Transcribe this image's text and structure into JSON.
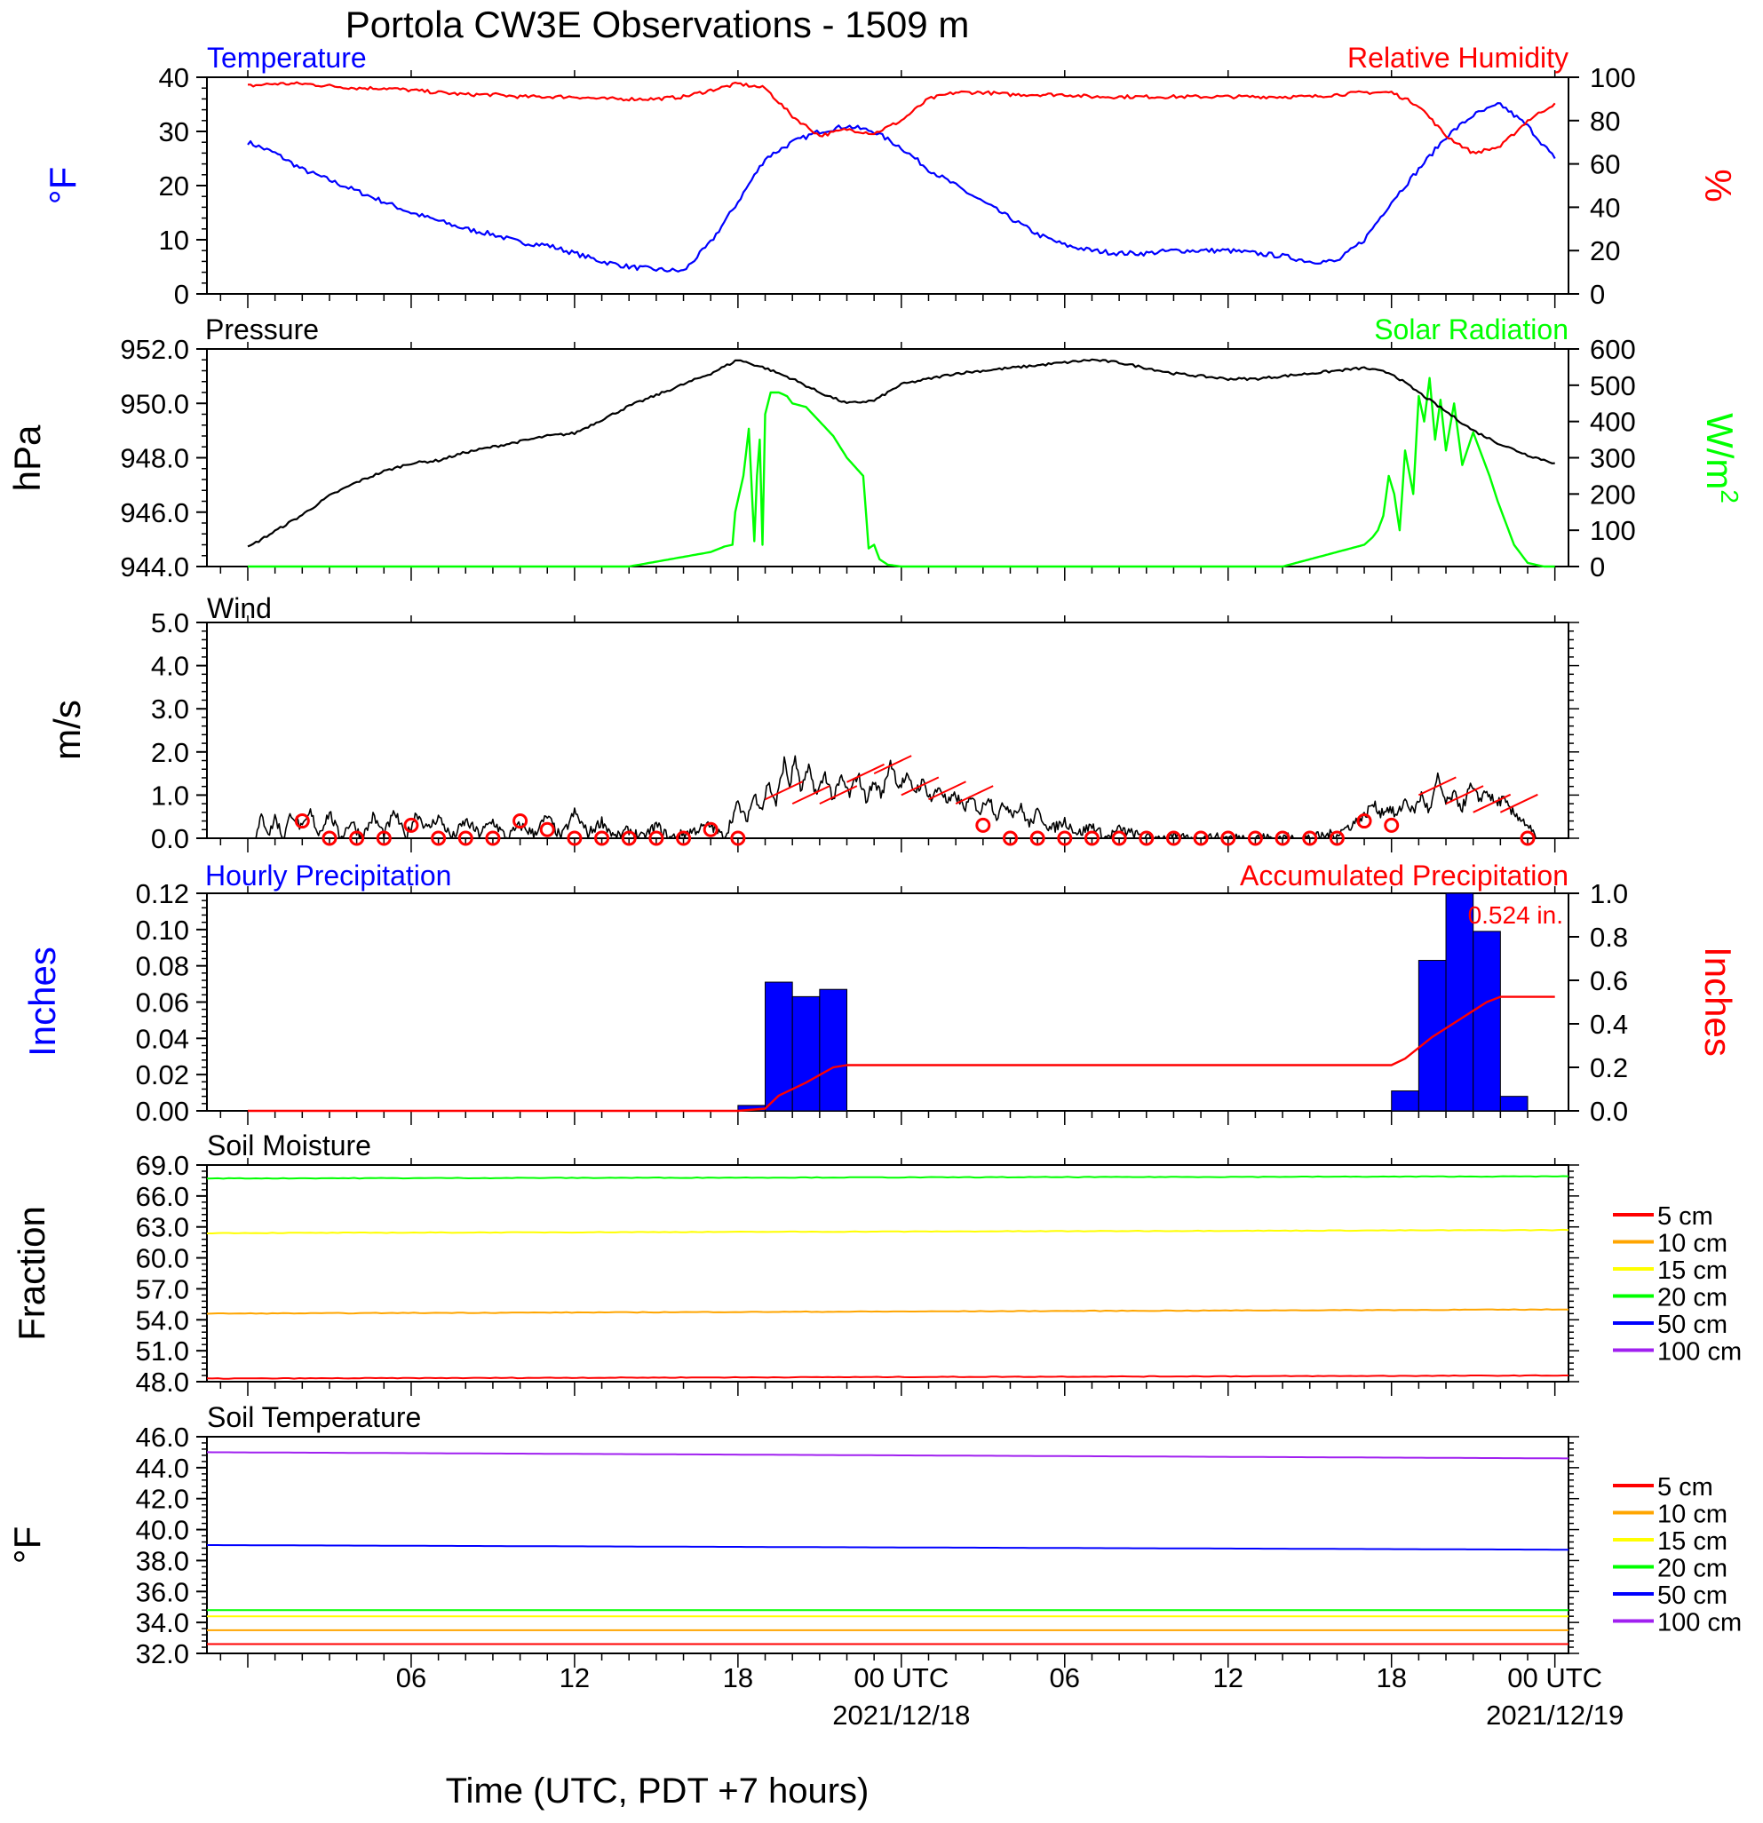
{
  "title": "Portola CW3E Observations - 1509 m",
  "xlabel": "Time (UTC, PDT +7 hours)",
  "x_ticks": [
    "06",
    "12",
    "18",
    "00 UTC",
    "06",
    "12",
    "18",
    "00 UTC"
  ],
  "x_dates": [
    "2021/12/18",
    "2021/12/19"
  ],
  "colors": {
    "temperature": "#0000ff",
    "humidity": "#ff0000",
    "pressure": "#000000",
    "solar": "#00ff00",
    "wind": "#000000",
    "wind_barb": "#ff0000",
    "hourly_precip": "#0000ff",
    "accum_precip": "#ff0000",
    "soil_5": "#ff0000",
    "soil_10": "#ffa500",
    "soil_15": "#ffff00",
    "soil_20": "#00ff00",
    "soil_50": "#0000ff",
    "soil_100": "#a020f0"
  },
  "chart_data": [
    {
      "id": "temp-rh",
      "type": "line",
      "left_title": "Temperature",
      "right_title": "Relative Humidity",
      "ylabel": "°F",
      "y2label": "%",
      "ylim": [
        0,
        40
      ],
      "y2lim": [
        0,
        100
      ],
      "yticks": [
        "0",
        "10",
        "20",
        "30",
        "40"
      ],
      "y2ticks": [
        "0",
        "20",
        "40",
        "60",
        "80",
        "100"
      ],
      "x_hours": [
        0,
        1,
        2,
        3,
        4,
        5,
        6,
        7,
        8,
        9,
        10,
        11,
        12,
        13,
        14,
        15,
        16,
        17,
        18,
        19,
        20,
        21,
        22,
        23,
        24,
        25,
        26,
        27,
        28,
        29,
        30,
        31,
        32,
        33,
        34,
        35,
        36,
        37,
        38,
        39,
        40,
        41,
        42,
        43,
        44,
        45,
        46,
        47,
        48
      ],
      "series": [
        {
          "name": "Temperature",
          "axis": "left",
          "values": [
            28,
            26,
            23,
            21,
            19,
            17,
            15,
            13.5,
            12,
            11,
            9.5,
            9,
            7.5,
            6,
            5,
            4.5,
            4.2,
            9.5,
            17,
            25,
            28,
            30,
            31,
            30,
            27,
            23,
            20,
            17,
            14,
            11,
            9,
            8,
            7.5,
            7.5,
            8,
            8,
            8,
            7.5,
            7,
            6,
            6,
            10,
            17,
            23,
            29,
            33,
            35,
            31,
            25
          ]
        },
        {
          "name": "Relative Humidity",
          "axis": "right",
          "values": [
            96,
            97,
            97,
            96,
            95,
            95,
            94,
            93,
            92,
            92,
            91,
            91,
            91,
            90,
            90,
            90,
            91,
            94,
            97,
            95,
            82,
            73,
            76,
            74,
            80,
            90,
            93,
            93,
            92,
            92,
            92,
            91,
            91,
            91,
            91,
            91,
            91,
            91,
            91,
            91,
            92,
            93,
            93,
            87,
            73,
            65,
            68,
            80,
            88
          ]
        }
      ]
    },
    {
      "id": "pressure-solar",
      "type": "line",
      "left_title": "Pressure",
      "right_title": "Solar Radiation",
      "ylabel": "hPa",
      "y2label": "W/m",
      "y2label_sup": "2",
      "ylim": [
        944,
        952
      ],
      "y2lim": [
        0,
        600
      ],
      "yticks": [
        "944.0",
        "946.0",
        "948.0",
        "950.0",
        "952.0"
      ],
      "y2ticks": [
        "0",
        "100",
        "200",
        "300",
        "400",
        "500",
        "600"
      ],
      "series": [
        {
          "name": "Pressure",
          "axis": "left",
          "x_hours": [
            0,
            1,
            2,
            3,
            4,
            5,
            6,
            7,
            8,
            9,
            10,
            11,
            12,
            13,
            14,
            15,
            16,
            17,
            18,
            19,
            20,
            21,
            22,
            23,
            24,
            25,
            26,
            27,
            28,
            29,
            30,
            31,
            32,
            33,
            34,
            35,
            36,
            37,
            38,
            39,
            40,
            41,
            42,
            43,
            44,
            45,
            46,
            47,
            48
          ],
          "values": [
            944.7,
            945.3,
            945.9,
            946.6,
            947.1,
            947.5,
            947.8,
            947.9,
            948.2,
            948.4,
            948.6,
            948.8,
            948.9,
            949.4,
            949.9,
            950.3,
            950.7,
            951.1,
            951.6,
            951.3,
            950.9,
            950.4,
            950.0,
            950.1,
            950.7,
            950.9,
            951.1,
            951.2,
            951.3,
            951.4,
            951.5,
            951.6,
            951.5,
            951.3,
            951.1,
            951.0,
            950.9,
            950.9,
            951.0,
            951.1,
            951.2,
            951.3,
            951.1,
            950.4,
            949.7,
            949.0,
            948.5,
            948.1,
            947.8
          ]
        },
        {
          "name": "Solar Radiation",
          "axis": "right",
          "x_hours": [
            0,
            14,
            15.5,
            17,
            17.5,
            17.8,
            17.9,
            18.2,
            18.4,
            18.6,
            18.7,
            18.8,
            18.9,
            19.0,
            19.2,
            19.5,
            19.8,
            20.0,
            20.5,
            21.0,
            21.5,
            22.0,
            22.6,
            22.8,
            23.0,
            23.2,
            23.5,
            24.0,
            24.5,
            38,
            39.5,
            41.0,
            41.3,
            41.5,
            41.7,
            41.9,
            42.1,
            42.3,
            42.5,
            42.8,
            43.0,
            43.2,
            43.4,
            43.6,
            43.8,
            44.0,
            44.3,
            44.6,
            45.0,
            45.3,
            45.6,
            45.9,
            46.2,
            46.5,
            46.8,
            47.0,
            47.3,
            47.6,
            48.0
          ],
          "values": [
            0,
            0,
            20,
            40,
            55,
            60,
            150,
            250,
            380,
            70,
            250,
            350,
            60,
            420,
            480,
            480,
            470,
            450,
            440,
            400,
            360,
            300,
            250,
            50,
            60,
            20,
            5,
            0,
            0,
            0,
            30,
            60,
            80,
            100,
            140,
            250,
            200,
            100,
            320,
            200,
            470,
            400,
            520,
            350,
            460,
            320,
            450,
            280,
            370,
            310,
            250,
            180,
            120,
            60,
            30,
            10,
            5,
            0,
            0
          ]
        }
      ]
    },
    {
      "id": "wind",
      "type": "line",
      "left_title": "Wind",
      "ylabel": "m/s",
      "ylim": [
        0,
        5
      ],
      "yticks": [
        "0.0",
        "1.0",
        "2.0",
        "3.0",
        "4.0",
        "5.0"
      ],
      "series": [
        {
          "name": "Wind",
          "x_hours": [
            0.3,
            0.5,
            0.8,
            1.0,
            1.3,
            1.6,
            2.0,
            2.3,
            2.6,
            3.0,
            3.4,
            3.8,
            4.2,
            4.6,
            5.0,
            5.4,
            5.8,
            6.2,
            6.6,
            7.0,
            7.5,
            8.0,
            8.5,
            9.0,
            9.5,
            10.0,
            10.5,
            11.0,
            11.5,
            12.0,
            12.5,
            13.0,
            13.5,
            14.0,
            14.5,
            15.0,
            15.5,
            16.0,
            16.5,
            17.0,
            17.5,
            17.8,
            18.0,
            18.3,
            18.6,
            18.9,
            19.1,
            19.4,
            19.7,
            19.9,
            20.1,
            20.3,
            20.6,
            20.9,
            21.2,
            21.5,
            21.8,
            22.1,
            22.4,
            22.7,
            23.0,
            23.3,
            23.6,
            23.9,
            24.2,
            24.5,
            24.8,
            25.1,
            25.4,
            25.7,
            26.0,
            26.3,
            26.6,
            26.9,
            27.2,
            27.5,
            27.8,
            28.1,
            28.4,
            28.7,
            29.0,
            29.5,
            30.0,
            30.5,
            31.0,
            31.5,
            32.0,
            32.5,
            33,
            34,
            35,
            36,
            37,
            38,
            39,
            40,
            40.5,
            41,
            41.3,
            41.6,
            41.9,
            42.2,
            42.5,
            42.8,
            43.1,
            43.4,
            43.7,
            44.0,
            44.3,
            44.6,
            44.9,
            45.2,
            45.5,
            45.8,
            46.1,
            46.4,
            46.7,
            47.0,
            47.3
          ],
          "values": [
            0,
            0.5,
            0.1,
            0.5,
            0,
            0.6,
            0.2,
            0.6,
            0.1,
            0.6,
            0,
            0.4,
            0,
            0.5,
            0.1,
            0.6,
            0,
            0.6,
            0.2,
            0.5,
            0,
            0.4,
            0.1,
            0.4,
            0,
            0.3,
            0.1,
            0.5,
            0,
            0.6,
            0.1,
            0.4,
            0,
            0.2,
            0,
            0.3,
            0,
            0.1,
            0.2,
            0.3,
            0,
            0.5,
            0.8,
            0.4,
            1.0,
            0.7,
            1.3,
            0.8,
            1.8,
            1.2,
            1.9,
            1.1,
            1.6,
            1.0,
            1.5,
            0.9,
            1.4,
            1.0,
            1.5,
            0.9,
            1.3,
            1.0,
            1.8,
            1.2,
            1.4,
            1.1,
            1.3,
            0.9,
            1.2,
            0.8,
            1.0,
            0.7,
            0.9,
            0.6,
            1.0,
            0.5,
            0.8,
            0.6,
            0.7,
            0.3,
            0.6,
            0.2,
            0.4,
            0.1,
            0.3,
            0,
            0.2,
            0.1,
            0,
            0,
            0,
            0,
            0,
            0,
            0,
            0.1,
            0.3,
            0.5,
            0.8,
            0.6,
            0.7,
            0.5,
            0.9,
            0.6,
            1.0,
            0.6,
            1.4,
            0.8,
            1.0,
            0.7,
            1.2,
            0.9,
            1.1,
            0.8,
            0.9,
            0.6,
            0.5,
            0.3,
            0
          ]
        }
      ],
      "barbs_x_hours": [
        2,
        3,
        4,
        5,
        6,
        7,
        8,
        9,
        10,
        11,
        12,
        13,
        14,
        15,
        16,
        17,
        18,
        19,
        20,
        21,
        22,
        23,
        24,
        25,
        26,
        27,
        28,
        29,
        30,
        31,
        32,
        33,
        34,
        35,
        36,
        37,
        38,
        39,
        40,
        41,
        42,
        43,
        44,
        45,
        46,
        47
      ],
      "barbs_speed": [
        0.4,
        0,
        0,
        0,
        0.3,
        0,
        0,
        0,
        0.4,
        0.2,
        0,
        0,
        0,
        0,
        0,
        0.2,
        0,
        0.9,
        0.8,
        0.8,
        1.3,
        1.5,
        1.0,
        0.9,
        0.8,
        0.3,
        0,
        0,
        0,
        0,
        0,
        0,
        0,
        0,
        0,
        0,
        0,
        0,
        0,
        0.4,
        0.3,
        1.0,
        0.8,
        0.6,
        0.6,
        0
      ],
      "barbs_calm": [
        true,
        true,
        true,
        true,
        true,
        true,
        true,
        true,
        true,
        true,
        true,
        true,
        true,
        true,
        true,
        true,
        true,
        false,
        false,
        false,
        false,
        false,
        false,
        false,
        false,
        true,
        true,
        true,
        true,
        true,
        true,
        true,
        true,
        true,
        true,
        true,
        true,
        true,
        true,
        true,
        true,
        false,
        false,
        false,
        false,
        true
      ]
    },
    {
      "id": "precip",
      "type": "bar",
      "left_title": "Hourly Precipitation",
      "right_title": "Accumulated Precipitation",
      "total_label": "0.524 in.",
      "ylabel": "Inches",
      "y2label": "Inches",
      "ylim": [
        0,
        0.12
      ],
      "y2lim": [
        0,
        1.0
      ],
      "yticks": [
        "0.00",
        "0.02",
        "0.04",
        "0.06",
        "0.08",
        "0.10",
        "0.12"
      ],
      "y2ticks": [
        "0.0",
        "0.2",
        "0.4",
        "0.6",
        "0.8",
        "1.0"
      ],
      "bars": {
        "name": "Hourly Precipitation",
        "x_hours": [
          18,
          19,
          20,
          21,
          42,
          43,
          44,
          45,
          46
        ],
        "values": [
          0.003,
          0.071,
          0.063,
          0.067,
          0.011,
          0.083,
          0.12,
          0.099,
          0.008
        ]
      },
      "accum": {
        "name": "Accumulated Precipitation",
        "x_hours": [
          0,
          18.0,
          19.0,
          19.5,
          20.5,
          21.5,
          22.0,
          42.0,
          42.5,
          43.5,
          44.5,
          45.5,
          46.0,
          48.0
        ],
        "values": [
          0,
          0,
          0.01,
          0.07,
          0.13,
          0.2,
          0.21,
          0.21,
          0.24,
          0.34,
          0.42,
          0.5,
          0.524,
          0.524
        ]
      }
    },
    {
      "id": "soil-moisture",
      "type": "line",
      "left_title": "Soil Moisture",
      "ylabel": "Fraction",
      "ylim": [
        48,
        69
      ],
      "yticks": [
        "48.0",
        "51.0",
        "54.0",
        "57.0",
        "60.0",
        "63.0",
        "66.0",
        "69.0"
      ],
      "legend": [
        "5 cm",
        "10 cm",
        "15 cm",
        "20 cm",
        "50 cm",
        "100 cm"
      ],
      "series": [
        {
          "name": "5 cm",
          "start": 48.3,
          "end": 48.6
        },
        {
          "name": "10 cm",
          "start": 54.6,
          "end": 55.0
        },
        {
          "name": "15 cm",
          "start": 62.4,
          "end": 62.7
        },
        {
          "name": "20 cm",
          "start": 67.7,
          "end": 67.9
        }
      ]
    },
    {
      "id": "soil-temp",
      "type": "line",
      "left_title": "Soil Temperature",
      "ylabel": "°F",
      "ylim": [
        32,
        46
      ],
      "yticks": [
        "32.0",
        "34.0",
        "36.0",
        "38.0",
        "40.0",
        "42.0",
        "44.0",
        "46.0"
      ],
      "legend": [
        "5 cm",
        "10 cm",
        "15 cm",
        "20 cm",
        "50 cm",
        "100 cm"
      ],
      "series": [
        {
          "name": "5 cm",
          "start": 32.6,
          "end": 32.6
        },
        {
          "name": "10 cm",
          "start": 33.5,
          "end": 33.5
        },
        {
          "name": "15 cm",
          "start": 34.4,
          "end": 34.4
        },
        {
          "name": "20 cm",
          "start": 34.8,
          "end": 34.8
        },
        {
          "name": "50 cm",
          "start": 39.0,
          "end": 38.7
        },
        {
          "name": "100 cm",
          "start": 45.0,
          "end": 44.6
        }
      ]
    }
  ]
}
